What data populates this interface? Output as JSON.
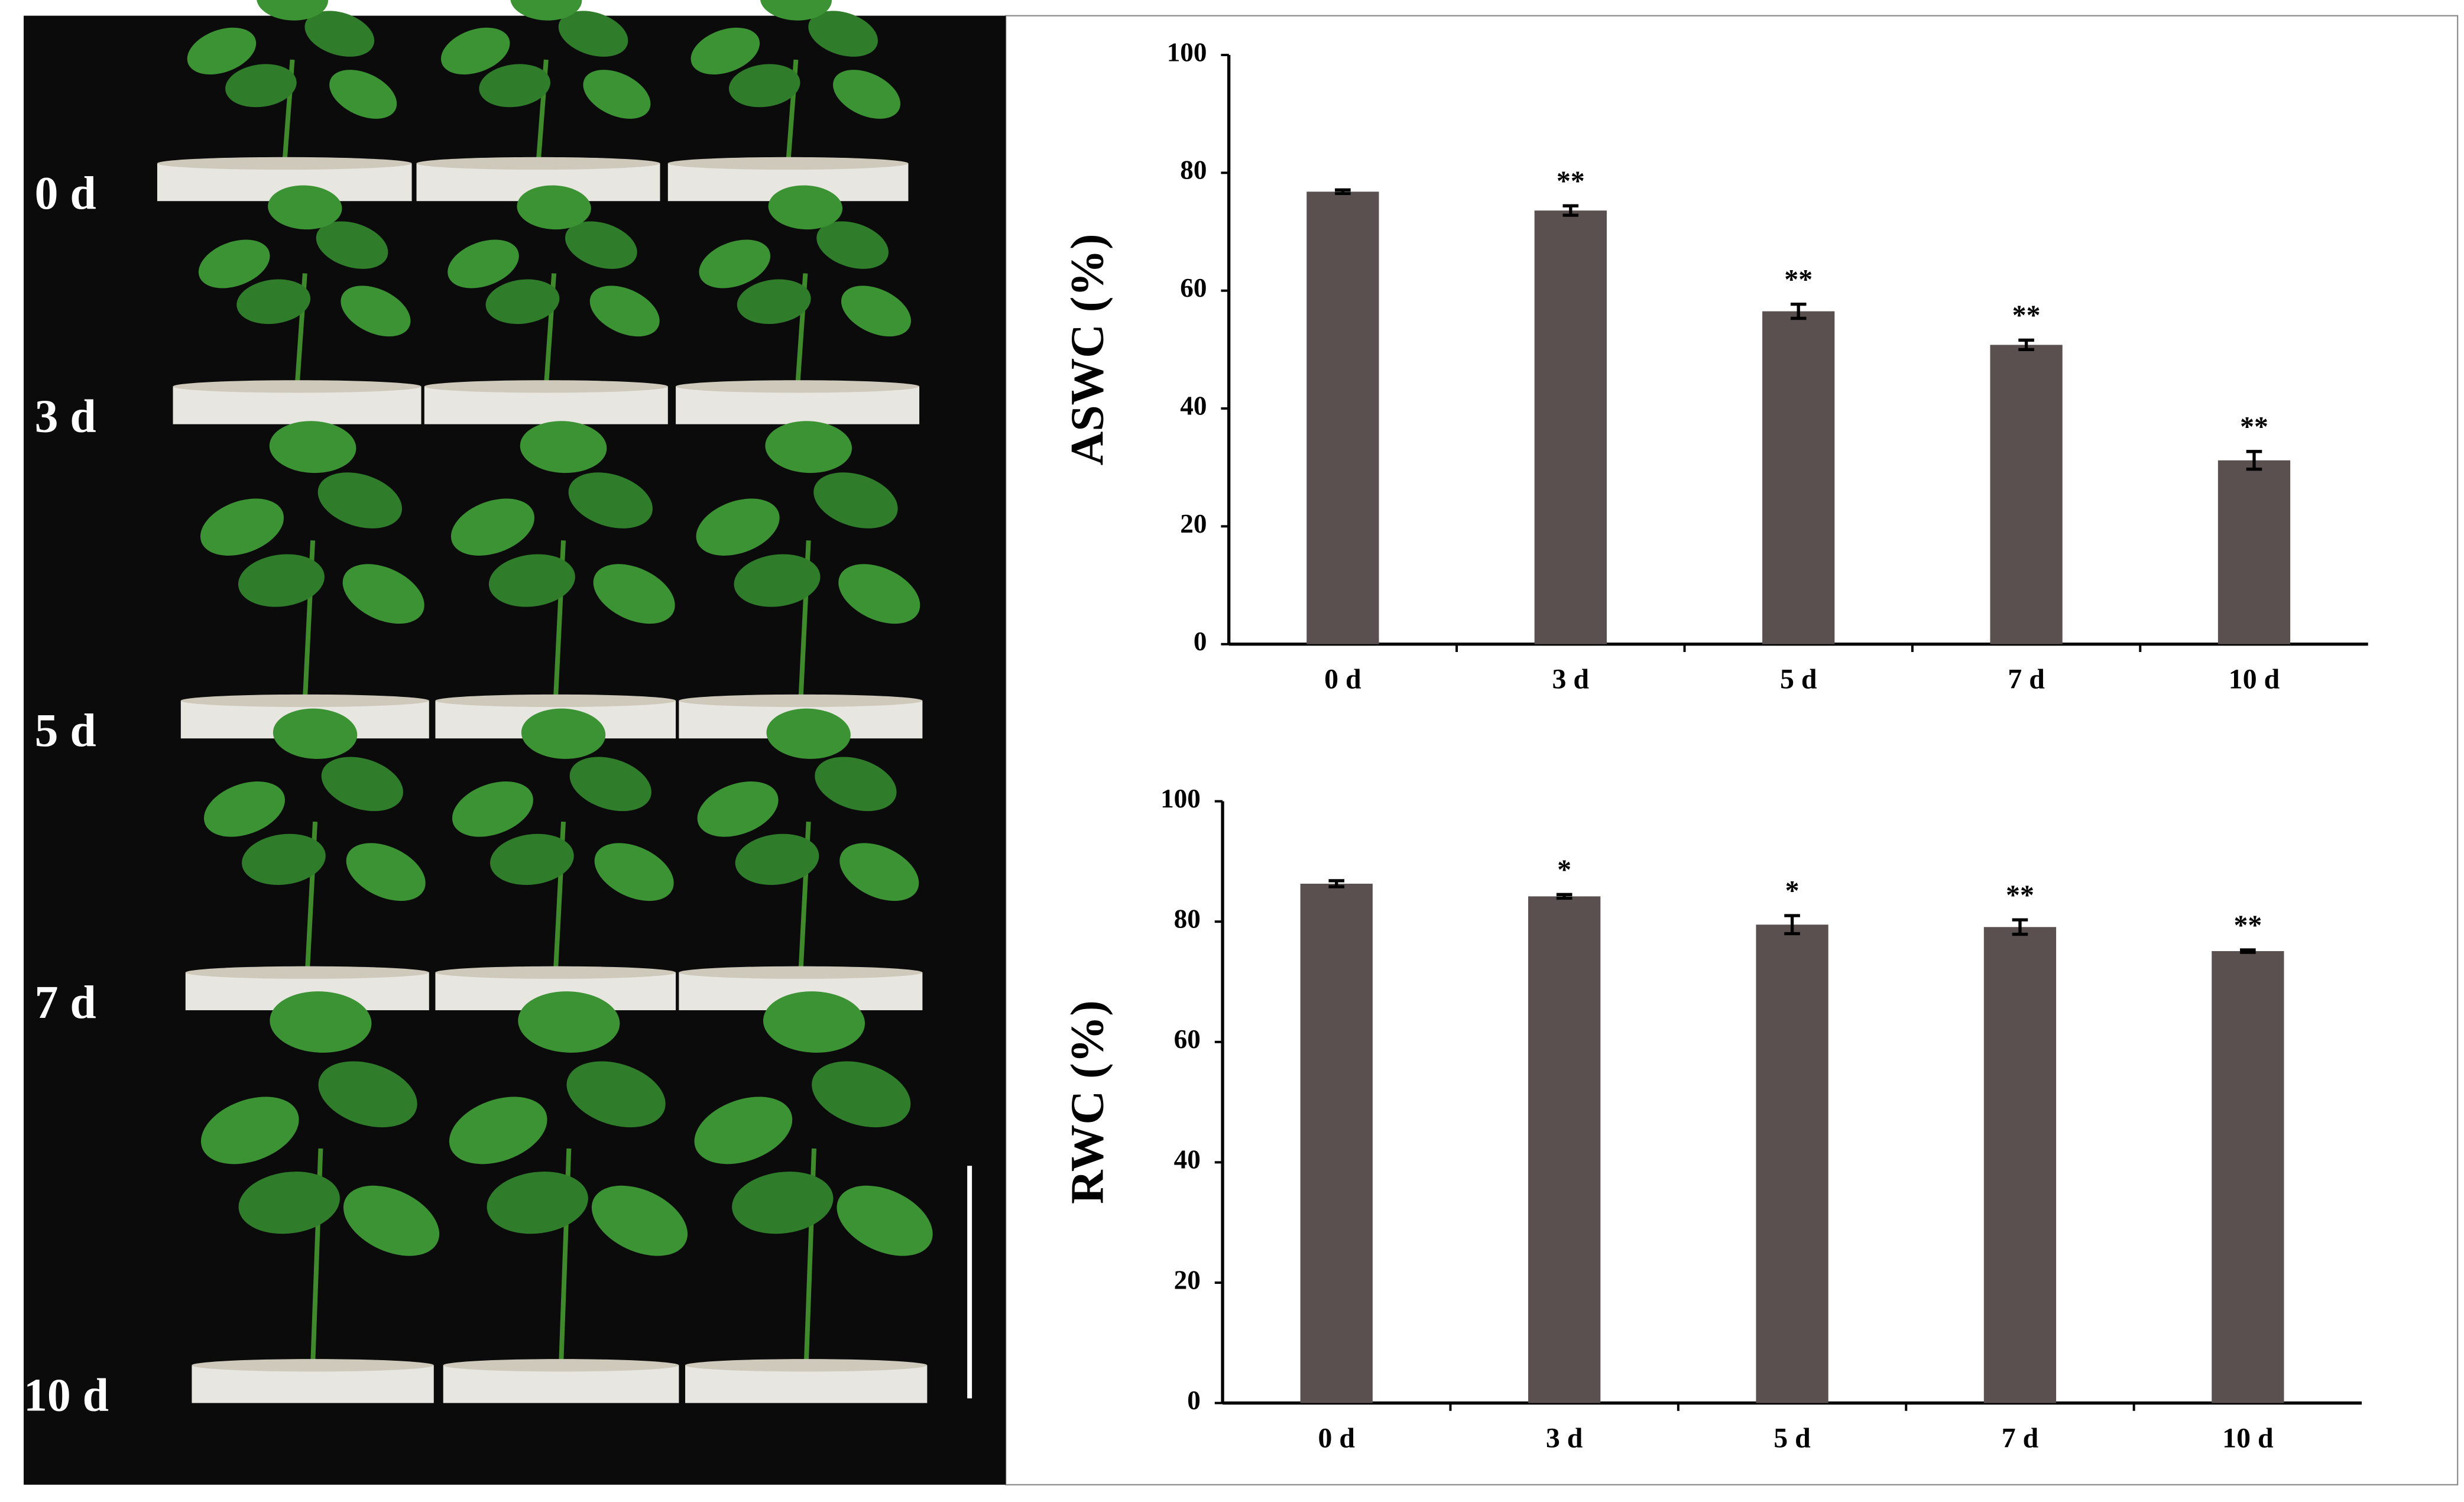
{
  "photo_panel": {
    "labels": [
      "0 d",
      "3 d",
      "5 d",
      "7 d",
      "10 d"
    ]
  },
  "chart_data": [
    {
      "type": "bar",
      "y_label": "ASWC (%)",
      "categories": [
        "0 d",
        "3 d",
        "5 d",
        "7 d",
        "10 d"
      ],
      "values": [
        76.8,
        73.6,
        56.5,
        50.8,
        31.2
      ],
      "errors": [
        0.3,
        0.8,
        1.2,
        0.8,
        1.5
      ],
      "annotations": [
        null,
        "**",
        "**",
        "**",
        "**"
      ],
      "color": "#5a5050",
      "ylim": [
        0,
        100
      ],
      "yticks": [
        0,
        20,
        40,
        60,
        80,
        100
      ],
      "grid": false
    },
    {
      "type": "bar",
      "y_label": "RWC (%)",
      "categories": [
        "0 d",
        "3 d",
        "5 d",
        "7 d",
        "10 d"
      ],
      "values": [
        86.3,
        84.2,
        79.5,
        79.1,
        75.1
      ],
      "errors": [
        0.5,
        0.3,
        1.5,
        1.2,
        0.2
      ],
      "annotations": [
        null,
        "*",
        "*",
        "**",
        "**"
      ],
      "color": "#5a5050",
      "ylim": [
        0,
        100
      ],
      "yticks": [
        0,
        20,
        40,
        60,
        80,
        100
      ],
      "grid": false
    }
  ]
}
